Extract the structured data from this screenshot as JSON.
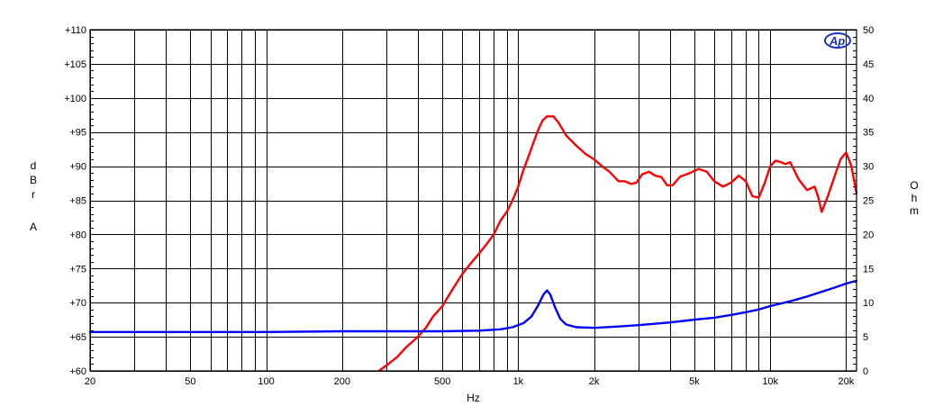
{
  "chart_data": {
    "type": "line",
    "x_scale": "log",
    "xlim": [
      20,
      22000
    ],
    "xlabel": "Hz",
    "x_ticks": [
      {
        "value": 20,
        "label": "20"
      },
      {
        "value": 50,
        "label": "50"
      },
      {
        "value": 100,
        "label": "100"
      },
      {
        "value": 200,
        "label": "200"
      },
      {
        "value": 500,
        "label": "500"
      },
      {
        "value": 1000,
        "label": "1k"
      },
      {
        "value": 2000,
        "label": "2k"
      },
      {
        "value": 5000,
        "label": "5k"
      },
      {
        "value": 10000,
        "label": "10k"
      },
      {
        "value": 20000,
        "label": "20k"
      }
    ],
    "x_gridlines": [
      20,
      30,
      40,
      50,
      60,
      70,
      80,
      90,
      100,
      200,
      300,
      400,
      500,
      600,
      700,
      800,
      900,
      1000,
      2000,
      3000,
      4000,
      5000,
      6000,
      7000,
      8000,
      9000,
      10000,
      20000
    ],
    "y_left": {
      "label_chars": [
        "d",
        "B",
        "r",
        "A"
      ],
      "ylim": [
        60,
        110
      ],
      "ticks": [
        {
          "value": 60,
          "label": "+60"
        },
        {
          "value": 65,
          "label": "+65"
        },
        {
          "value": 70,
          "label": "+70"
        },
        {
          "value": 75,
          "label": "+75"
        },
        {
          "value": 80,
          "label": "+80"
        },
        {
          "value": 85,
          "label": "+85"
        },
        {
          "value": 90,
          "label": "+90"
        },
        {
          "value": 95,
          "label": "+95"
        },
        {
          "value": 100,
          "label": "+100"
        },
        {
          "value": 105,
          "label": "+105"
        },
        {
          "value": 110,
          "label": "+110"
        }
      ]
    },
    "y_right": {
      "label_chars": [
        "O",
        "h",
        "m"
      ],
      "ylim": [
        0,
        50
      ],
      "ticks": [
        {
          "value": 0,
          "label": "0"
        },
        {
          "value": 5,
          "label": "5"
        },
        {
          "value": 10,
          "label": "10"
        },
        {
          "value": 15,
          "label": "15"
        },
        {
          "value": 20,
          "label": "20"
        },
        {
          "value": 25,
          "label": "25"
        },
        {
          "value": 30,
          "label": "30"
        },
        {
          "value": 35,
          "label": "35"
        },
        {
          "value": 40,
          "label": "40"
        },
        {
          "value": 45,
          "label": "45"
        },
        {
          "value": 50,
          "label": "50"
        }
      ]
    },
    "grid": true,
    "logo_text": "Ap",
    "series": [
      {
        "axis": "left",
        "color": "#ff0000",
        "points": [
          [
            280,
            60.0
          ],
          [
            300,
            60.8
          ],
          [
            330,
            62.0
          ],
          [
            360,
            63.5
          ],
          [
            400,
            65.0
          ],
          [
            430,
            66.3
          ],
          [
            460,
            68.0
          ],
          [
            500,
            69.5
          ],
          [
            550,
            72.0
          ],
          [
            600,
            74.2
          ],
          [
            650,
            75.8
          ],
          [
            700,
            77.2
          ],
          [
            750,
            78.6
          ],
          [
            800,
            80.0
          ],
          [
            850,
            82.0
          ],
          [
            900,
            83.3
          ],
          [
            950,
            85.0
          ],
          [
            1000,
            87.0
          ],
          [
            1050,
            89.5
          ],
          [
            1100,
            91.5
          ],
          [
            1150,
            93.5
          ],
          [
            1200,
            95.3
          ],
          [
            1250,
            96.7
          ],
          [
            1300,
            97.3
          ],
          [
            1380,
            97.3
          ],
          [
            1450,
            96.3
          ],
          [
            1550,
            94.5
          ],
          [
            1700,
            93.0
          ],
          [
            1850,
            91.8
          ],
          [
            2000,
            91.0
          ],
          [
            2150,
            90.0
          ],
          [
            2300,
            89.2
          ],
          [
            2500,
            87.8
          ],
          [
            2650,
            87.8
          ],
          [
            2800,
            87.4
          ],
          [
            2950,
            87.6
          ],
          [
            3100,
            88.8
          ],
          [
            3300,
            89.2
          ],
          [
            3500,
            88.6
          ],
          [
            3700,
            88.4
          ],
          [
            3900,
            87.2
          ],
          [
            4100,
            87.2
          ],
          [
            4400,
            88.5
          ],
          [
            4800,
            89.0
          ],
          [
            5200,
            89.6
          ],
          [
            5600,
            89.2
          ],
          [
            6000,
            87.8
          ],
          [
            6500,
            87.0
          ],
          [
            7000,
            87.6
          ],
          [
            7500,
            88.6
          ],
          [
            8000,
            87.8
          ],
          [
            8500,
            85.6
          ],
          [
            9000,
            85.4
          ],
          [
            9500,
            87.5
          ],
          [
            10000,
            90.0
          ],
          [
            10500,
            90.8
          ],
          [
            11000,
            90.6
          ],
          [
            11500,
            90.3
          ],
          [
            12000,
            90.6
          ],
          [
            13000,
            88.0
          ],
          [
            14000,
            86.5
          ],
          [
            15000,
            87.0
          ],
          [
            15500,
            85.5
          ],
          [
            16000,
            83.3
          ],
          [
            17000,
            85.8
          ],
          [
            18000,
            88.5
          ],
          [
            19000,
            91.0
          ],
          [
            20000,
            92.0
          ],
          [
            21000,
            90.0
          ],
          [
            22000,
            86.0
          ]
        ]
      },
      {
        "axis": "right",
        "color": "#0000ff",
        "points": [
          [
            20,
            5.7
          ],
          [
            50,
            5.7
          ],
          [
            100,
            5.7
          ],
          [
            200,
            5.8
          ],
          [
            300,
            5.8
          ],
          [
            500,
            5.8
          ],
          [
            700,
            5.9
          ],
          [
            850,
            6.1
          ],
          [
            950,
            6.4
          ],
          [
            1050,
            7.0
          ],
          [
            1130,
            8.0
          ],
          [
            1200,
            9.6
          ],
          [
            1260,
            11.2
          ],
          [
            1300,
            11.8
          ],
          [
            1340,
            11.2
          ],
          [
            1400,
            9.3
          ],
          [
            1470,
            7.6
          ],
          [
            1550,
            6.8
          ],
          [
            1700,
            6.4
          ],
          [
            2000,
            6.3
          ],
          [
            2500,
            6.5
          ],
          [
            3000,
            6.7
          ],
          [
            4000,
            7.1
          ],
          [
            5000,
            7.5
          ],
          [
            6000,
            7.8
          ],
          [
            7000,
            8.2
          ],
          [
            8000,
            8.6
          ],
          [
            9000,
            9.0
          ],
          [
            10000,
            9.5
          ],
          [
            12000,
            10.2
          ],
          [
            14000,
            10.9
          ],
          [
            16000,
            11.6
          ],
          [
            18000,
            12.2
          ],
          [
            20000,
            12.8
          ],
          [
            22000,
            13.2
          ]
        ]
      }
    ]
  }
}
